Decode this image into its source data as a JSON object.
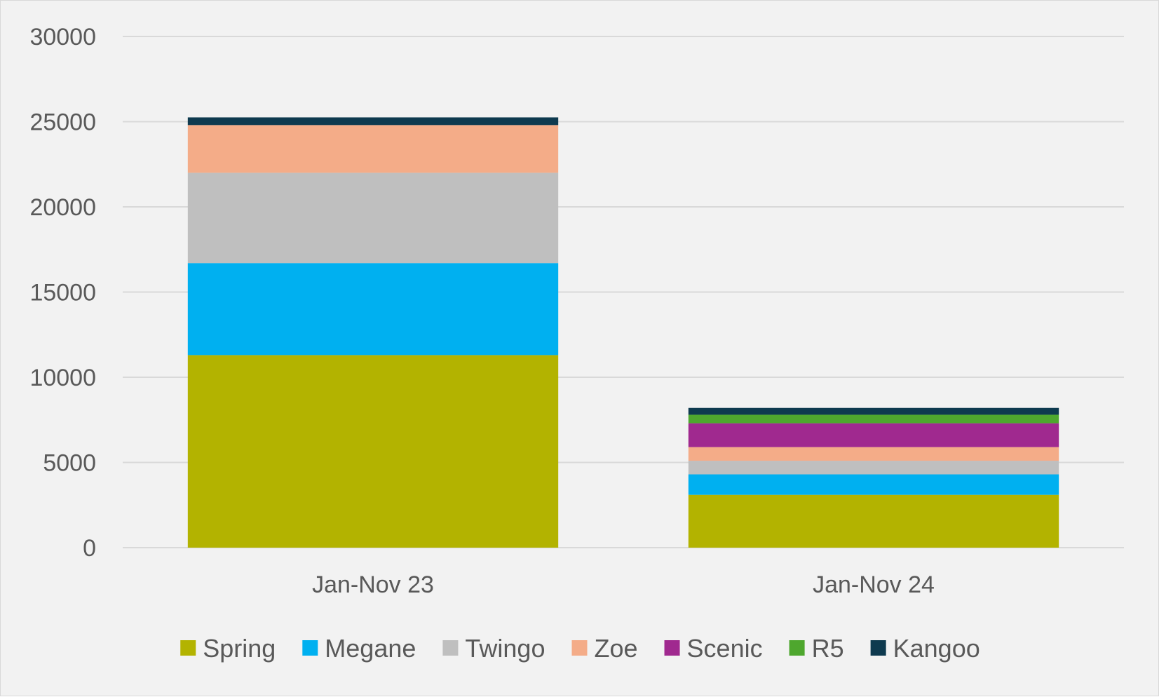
{
  "chart_data": {
    "type": "bar",
    "stacked": true,
    "title": "",
    "xlabel": "",
    "ylabel": "",
    "ylim": [
      0,
      30000
    ],
    "yticks": [
      0,
      5000,
      10000,
      15000,
      20000,
      25000,
      30000
    ],
    "grid": true,
    "legend_position": "bottom",
    "categories": [
      "Jan-Nov 23",
      "Jan-Nov 24"
    ],
    "series": [
      {
        "name": "Spring",
        "color": "#b3b300",
        "values": [
          11300,
          3100
        ]
      },
      {
        "name": "Megane",
        "color": "#00b0f0",
        "values": [
          5400,
          1200
        ]
      },
      {
        "name": "Twingo",
        "color": "#bfbfbf",
        "values": [
          5300,
          800
        ]
      },
      {
        "name": "Zoe",
        "color": "#f4ac88",
        "values": [
          2800,
          800
        ]
      },
      {
        "name": "Scenic",
        "color": "#a0298f",
        "values": [
          0,
          1400
        ]
      },
      {
        "name": "R5",
        "color": "#4ea72e",
        "values": [
          0,
          500
        ]
      },
      {
        "name": "Kangoo",
        "color": "#0e3a4f",
        "values": [
          450,
          400
        ]
      }
    ]
  }
}
